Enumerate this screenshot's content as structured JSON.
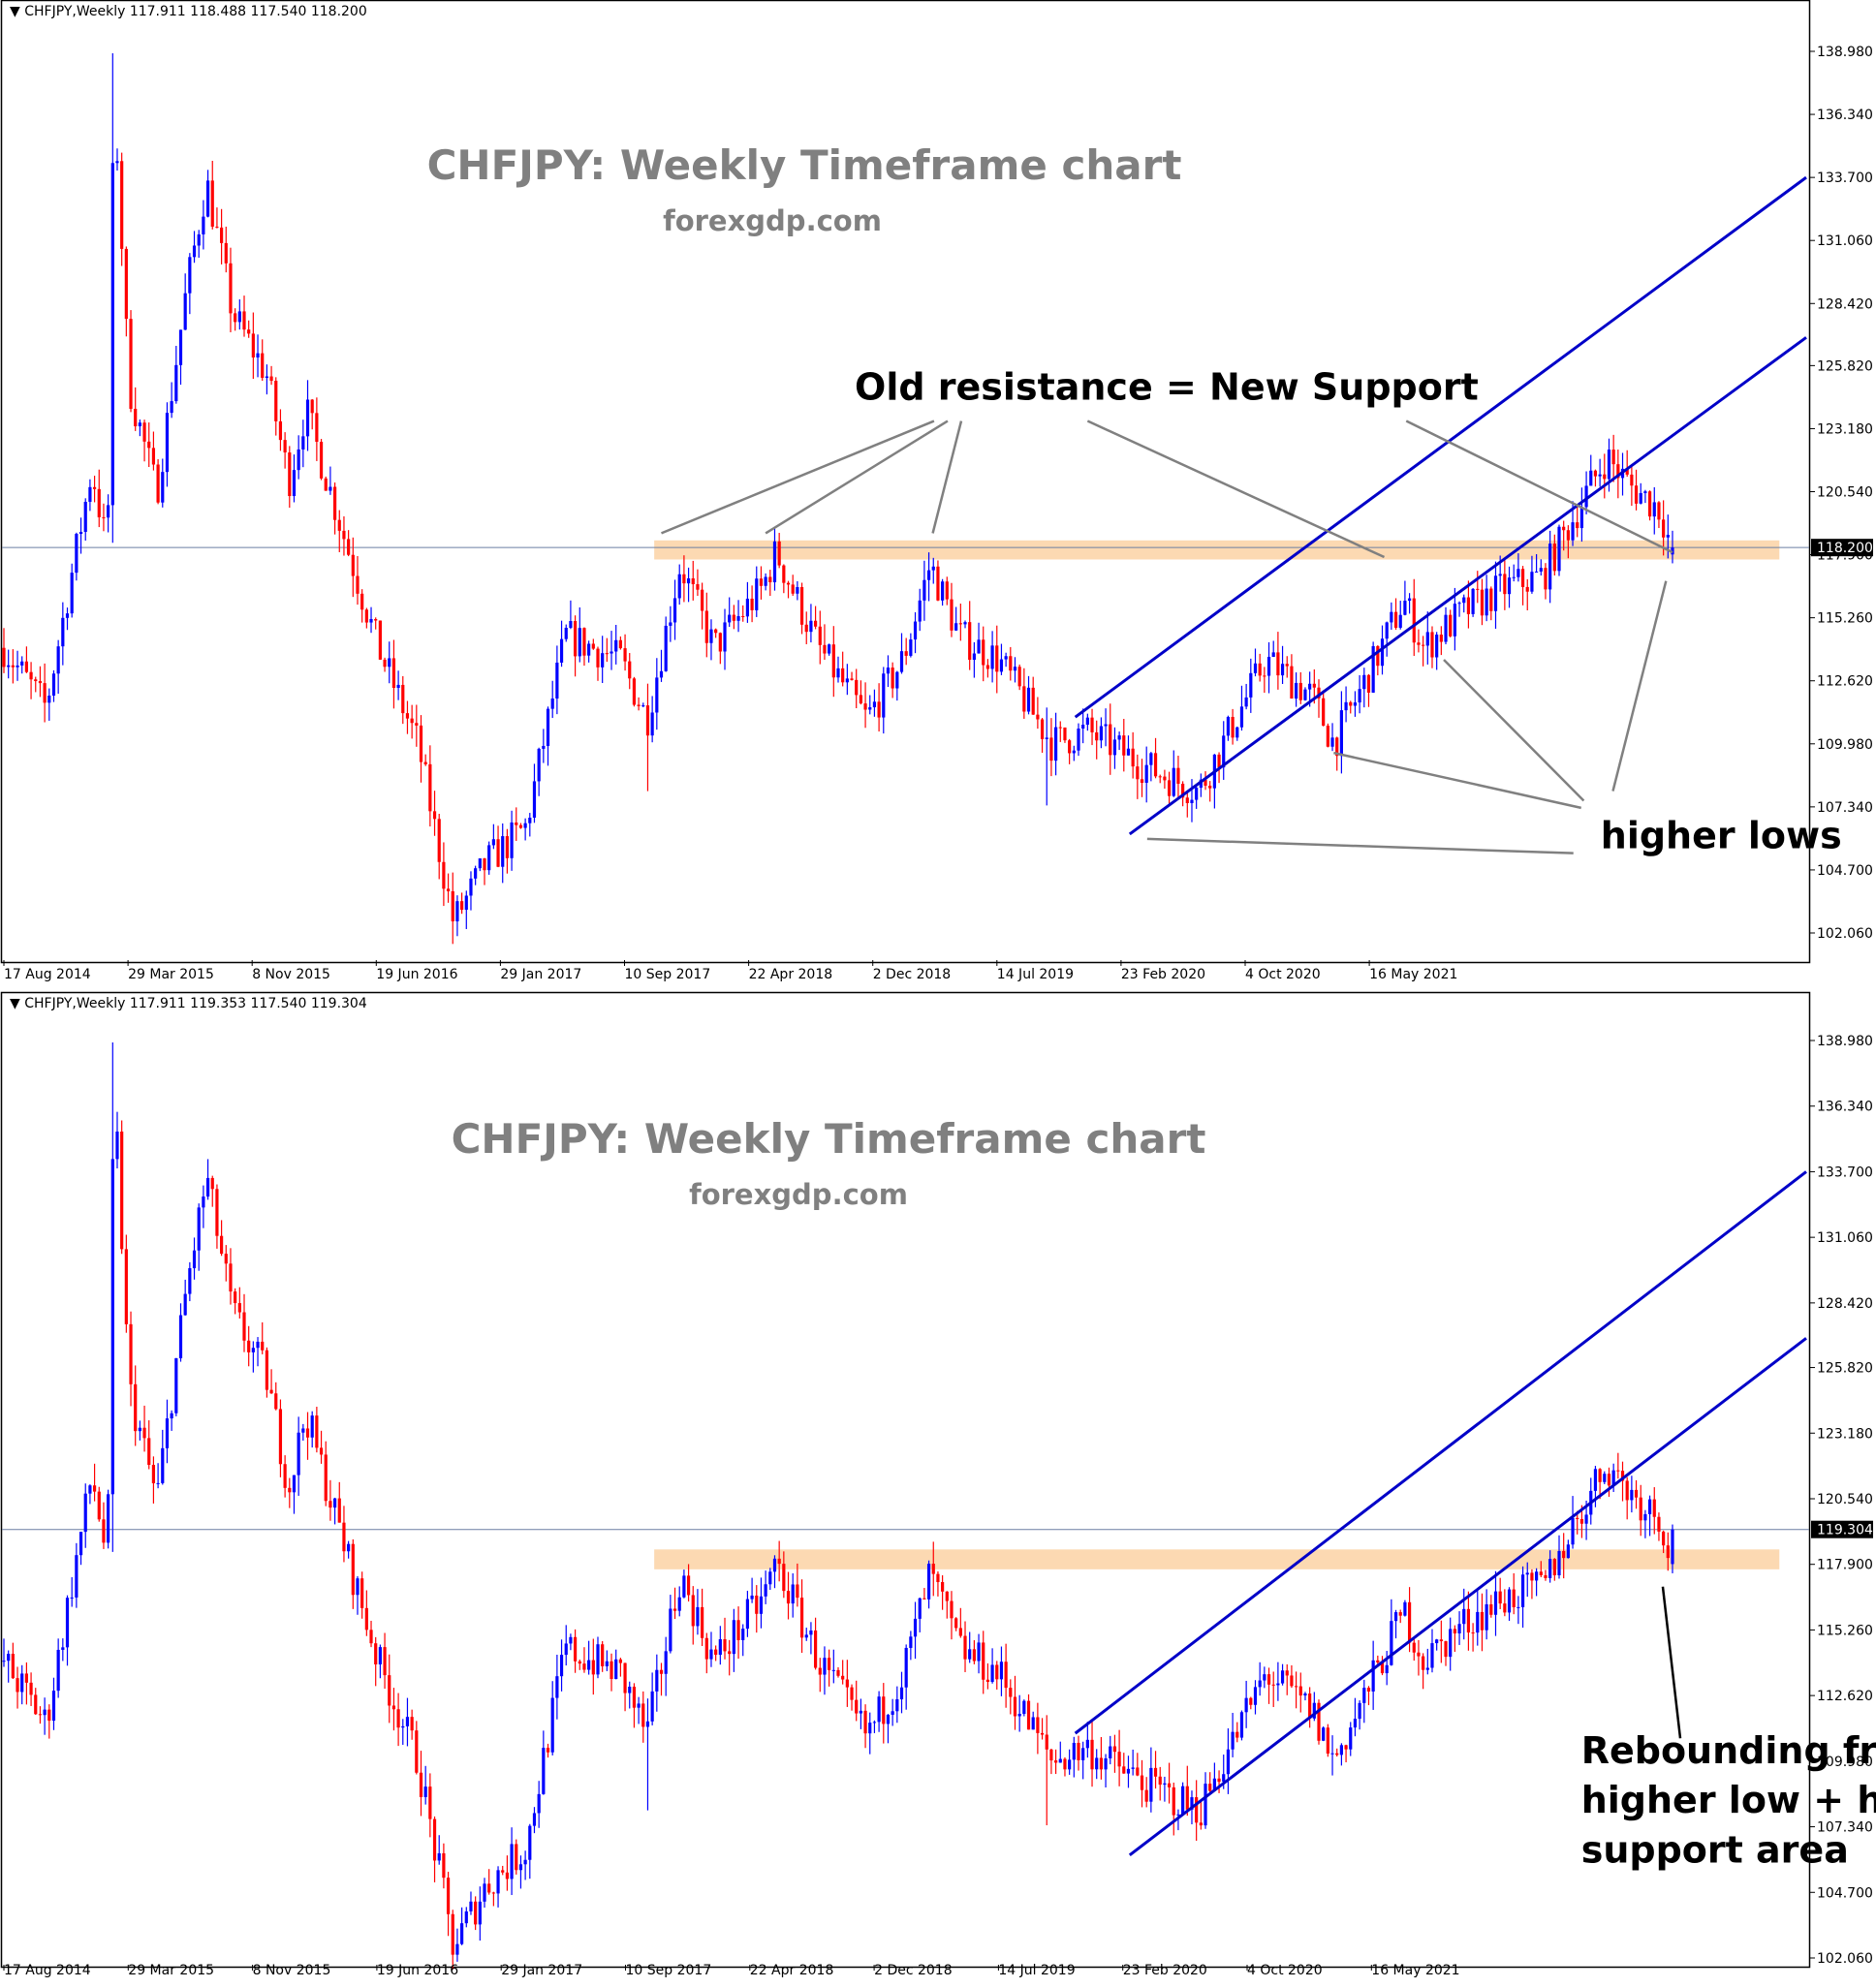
{
  "colors": {
    "bull": "#0000ff",
    "bear": "#ff0000",
    "channel": "#0000c8",
    "zone": "#fcd9b2",
    "pointer": "#808080",
    "title": "#808080",
    "bid_line": "#6b7fa3"
  },
  "chart_data": [
    {
      "type": "candlestick",
      "header": "CHFJPY,Weekly  117.911 118.488 117.540 118.200",
      "title": "CHFJPY: Weekly Timeframe chart",
      "subtitle": "forexgdp.com",
      "current_price": 118.2,
      "current_price_label": "118.200",
      "y_ticks": [
        "138.980",
        "136.340",
        "133.700",
        "131.060",
        "128.420",
        "125.820",
        "123.180",
        "120.540",
        "117.900",
        "115.260",
        "112.620",
        "109.980",
        "107.340",
        "104.700",
        "102.060"
      ],
      "ylim": [
        101.1,
        139.8
      ],
      "x_ticks": [
        "17 Aug 2014",
        "29 Mar 2015",
        "8 Nov 2015",
        "19 Jun 2016",
        "29 Jan 2017",
        "10 Sep 2017",
        "22 Apr 2018",
        "2 Dec 2018",
        "14 Jul 2019",
        "23 Feb 2020",
        "4 Oct 2020",
        "16 May 2021"
      ],
      "x_range": [
        "2014-08-01",
        "2022-03-01"
      ],
      "support_zone": {
        "from": "2017-05-01",
        "to": "2022-02-01",
        "low": 117.7,
        "high": 118.5
      },
      "channel": {
        "upper": [
          [
            "2019-02-10",
            111.1
          ],
          [
            "2022-03-15",
            133.7
          ]
        ],
        "lower": [
          [
            "2019-05-05",
            106.2
          ],
          [
            "2022-03-15",
            127.0
          ]
        ]
      },
      "annotations": [
        {
          "text": "Old resistance = New Support",
          "x": "2019-07-01",
          "y": 124.4,
          "anchor": "middle",
          "pointers": [
            [
              "2018-07-07",
              123.5,
              "2017-05-12",
              118.8
            ],
            [
              "2018-07-28",
              123.5,
              "2017-10-20",
              118.8
            ],
            [
              "2018-08-18",
              123.5,
              "2018-07-05",
              118.8
            ],
            [
              "2019-03-01",
              123.5,
              "2020-06-01",
              117.8
            ],
            [
              "2020-07-05",
              123.5,
              "2021-08-20",
              118.0
            ]
          ]
        },
        {
          "text": "higher lows",
          "x": "2021-05-01",
          "y": 105.6,
          "anchor": "start",
          "pointers": [
            [
              "2021-03-20",
              105.4,
              "2019-06-01",
              106.0
            ],
            [
              "2021-04-01",
              107.3,
              "2020-03-15",
              109.6
            ],
            [
              "2021-04-05",
              107.6,
              "2020-09-01",
              113.5
            ],
            [
              "2021-05-20",
              108.0,
              "2021-08-10",
              116.8
            ]
          ]
        }
      ],
      "candles": []
    },
    {
      "type": "candlestick",
      "header": "CHFJPY,Weekly  117.911 119.353 117.540 119.304",
      "title": "CHFJPY: Weekly Timeframe chart",
      "subtitle": "forexgdp.com",
      "current_price": 119.304,
      "current_price_label": "119.304",
      "y_ticks": [
        "138.980",
        "136.340",
        "133.700",
        "131.060",
        "128.420",
        "125.820",
        "123.180",
        "120.540",
        "117.900",
        "115.260",
        "112.620",
        "109.980",
        "107.340",
        "104.700",
        "102.060"
      ],
      "ylim": [
        101.1,
        139.8
      ],
      "x_ticks": [
        "17 Aug 2014",
        "29 Mar 2015",
        "8 Nov 2015",
        "19 Jun 2016",
        "29 Jan 2017",
        "10 Sep 2017",
        "22 Apr 2018",
        "2 Dec 2018",
        "14 Jul 2019",
        "23 Feb 2020",
        "4 Oct 2020",
        "16 May 2021"
      ],
      "x_range": [
        "2014-08-01",
        "2022-03-01"
      ],
      "support_zone": {
        "from": "2017-05-01",
        "to": "2022-02-01",
        "low": 117.7,
        "high": 118.5
      },
      "channel": {
        "upper": [
          [
            "2019-02-10",
            111.1
          ],
          [
            "2022-03-15",
            133.7
          ]
        ],
        "lower": [
          [
            "2019-05-05",
            106.2
          ],
          [
            "2022-03-15",
            127.0
          ]
        ]
      },
      "annotations": [
        {
          "text": "Rebounding from the",
          "x": "2021-04-01",
          "y": 109.9,
          "anchor": "start",
          "pointers": [
            [
              "2021-09-01",
              110.9,
              "2021-08-05",
              117.0
            ]
          ]
        },
        {
          "text": "higher low + horizontal",
          "x": "2021-04-01",
          "y": 107.9,
          "anchor": "start",
          "pointers": []
        },
        {
          "text": "support area",
          "x": "2021-04-01",
          "y": 105.9,
          "anchor": "start",
          "pointers": []
        }
      ],
      "candles": []
    }
  ]
}
